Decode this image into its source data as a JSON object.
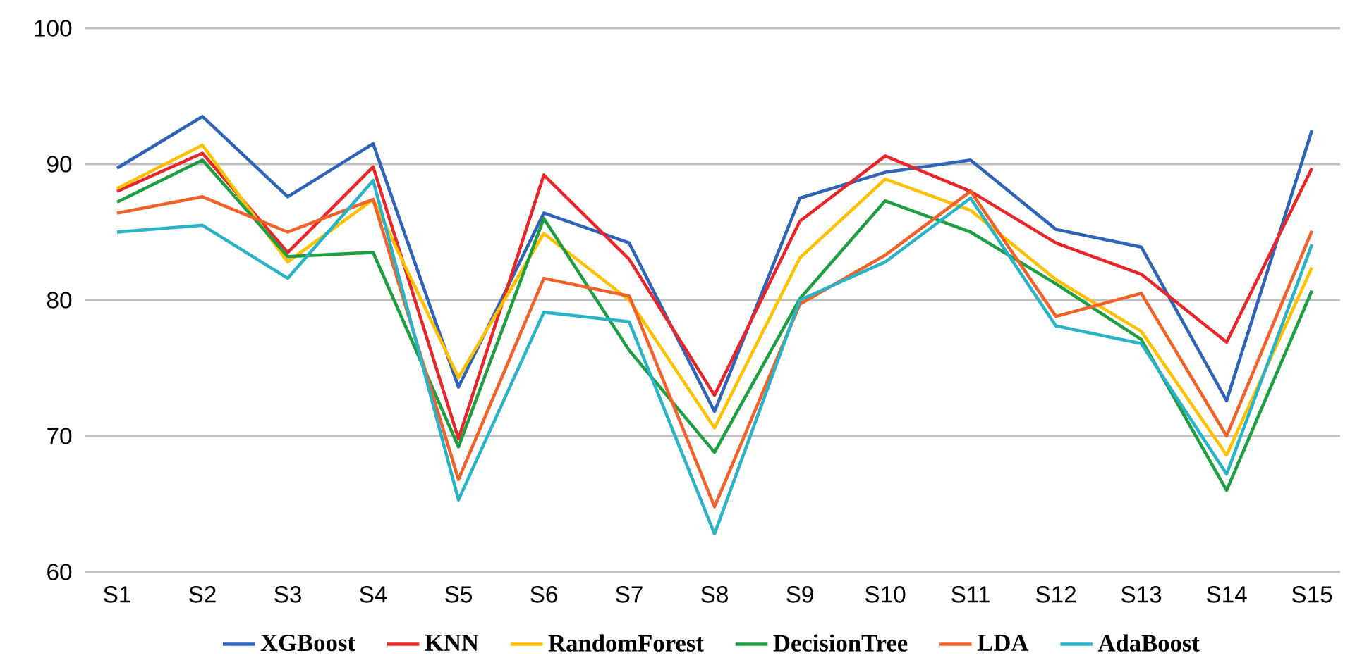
{
  "chart_data": {
    "type": "line",
    "categories": [
      "S1",
      "S2",
      "S3",
      "S4",
      "S5",
      "S6",
      "S7",
      "S8",
      "S9",
      "S10",
      "S11",
      "S12",
      "S13",
      "S14",
      "S15"
    ],
    "series": [
      {
        "name": "XGBoost",
        "color": "#2e63b8",
        "values": [
          89.7,
          93.5,
          87.6,
          91.5,
          73.6,
          86.4,
          84.2,
          71.8,
          87.5,
          89.4,
          90.3,
          85.2,
          83.9,
          72.6,
          92.5
        ]
      },
      {
        "name": "KNN",
        "color": "#e8262a",
        "values": [
          88.0,
          90.8,
          83.5,
          89.8,
          69.8,
          89.2,
          83.0,
          73.0,
          85.8,
          90.6,
          88.0,
          84.2,
          81.9,
          76.9,
          89.7
        ]
      },
      {
        "name": "RandomForest",
        "color": "#ffc000",
        "values": [
          88.2,
          91.4,
          82.8,
          87.4,
          74.3,
          84.9,
          80.0,
          70.6,
          83.1,
          88.9,
          86.6,
          81.5,
          77.7,
          68.6,
          82.4
        ]
      },
      {
        "name": "DecisionTree",
        "color": "#1e9e40",
        "values": [
          87.2,
          90.3,
          83.2,
          83.5,
          69.2,
          86.0,
          76.3,
          68.8,
          80.1,
          87.3,
          85.0,
          81.2,
          77.1,
          66.0,
          80.7
        ]
      },
      {
        "name": "LDA",
        "color": "#f0622a",
        "values": [
          86.4,
          87.6,
          85.0,
          87.4,
          66.8,
          81.6,
          80.3,
          64.8,
          79.7,
          83.3,
          88.0,
          78.8,
          80.5,
          70.0,
          85.1
        ]
      },
      {
        "name": "AdaBoost",
        "color": "#2ab3c6",
        "values": [
          85.0,
          85.5,
          81.6,
          88.8,
          65.3,
          79.1,
          78.4,
          62.8,
          80.0,
          82.8,
          87.5,
          78.1,
          76.8,
          67.2,
          84.1
        ]
      }
    ],
    "ylim": [
      60,
      100
    ],
    "yticks": [
      60,
      70,
      80,
      90,
      100
    ],
    "grid": "y",
    "legend": "bottom",
    "marker": "none",
    "line_style": "solid"
  }
}
